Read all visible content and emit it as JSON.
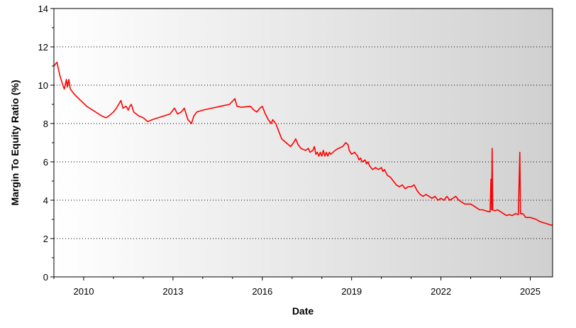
{
  "chart_data": {
    "type": "line",
    "title": "",
    "xlabel": "Date",
    "ylabel": "Margin To Equity Ratio (%)",
    "xlim": [
      2009.0,
      2025.75
    ],
    "ylim": [
      0,
      14
    ],
    "x_ticks": [
      2010,
      2013,
      2016,
      2019,
      2022,
      2025
    ],
    "y_ticks": [
      0,
      2,
      4,
      6,
      8,
      10,
      12,
      14
    ],
    "grid": "horizontal dotted",
    "legend": "none",
    "series": [
      {
        "color": "#ff0000",
        "points": [
          [
            2009.0,
            11.0
          ],
          [
            2009.1,
            11.2
          ],
          [
            2009.2,
            10.5
          ],
          [
            2009.3,
            10.0
          ],
          [
            2009.35,
            9.8
          ],
          [
            2009.42,
            10.3
          ],
          [
            2009.45,
            9.9
          ],
          [
            2009.5,
            10.3
          ],
          [
            2009.55,
            9.8
          ],
          [
            2009.7,
            9.5
          ],
          [
            2009.9,
            9.2
          ],
          [
            2010.1,
            8.9
          ],
          [
            2010.3,
            8.7
          ],
          [
            2010.5,
            8.5
          ],
          [
            2010.6,
            8.4
          ],
          [
            2010.75,
            8.3
          ],
          [
            2010.85,
            8.4
          ],
          [
            2011.0,
            8.6
          ],
          [
            2011.1,
            8.8
          ],
          [
            2011.25,
            9.2
          ],
          [
            2011.32,
            8.8
          ],
          [
            2011.42,
            8.9
          ],
          [
            2011.5,
            8.7
          ],
          [
            2011.55,
            8.9
          ],
          [
            2011.6,
            9.0
          ],
          [
            2011.68,
            8.6
          ],
          [
            2011.85,
            8.4
          ],
          [
            2012.0,
            8.3
          ],
          [
            2012.15,
            8.1
          ],
          [
            2012.3,
            8.2
          ],
          [
            2012.5,
            8.3
          ],
          [
            2012.7,
            8.4
          ],
          [
            2012.9,
            8.5
          ],
          [
            2013.05,
            8.8
          ],
          [
            2013.15,
            8.5
          ],
          [
            2013.28,
            8.6
          ],
          [
            2013.38,
            8.8
          ],
          [
            2013.5,
            8.2
          ],
          [
            2013.62,
            8.0
          ],
          [
            2013.7,
            8.4
          ],
          [
            2013.8,
            8.6
          ],
          [
            2014.0,
            8.7
          ],
          [
            2014.3,
            8.8
          ],
          [
            2014.6,
            8.9
          ],
          [
            2014.9,
            9.0
          ],
          [
            2015.08,
            9.3
          ],
          [
            2015.15,
            8.9
          ],
          [
            2015.3,
            8.85
          ],
          [
            2015.6,
            8.9
          ],
          [
            2015.72,
            8.7
          ],
          [
            2015.82,
            8.6
          ],
          [
            2015.92,
            8.8
          ],
          [
            2016.0,
            8.9
          ],
          [
            2016.1,
            8.5
          ],
          [
            2016.2,
            8.2
          ],
          [
            2016.3,
            8.0
          ],
          [
            2016.35,
            8.2
          ],
          [
            2016.45,
            8.0
          ],
          [
            2016.55,
            7.6
          ],
          [
            2016.65,
            7.2
          ],
          [
            2016.8,
            7.0
          ],
          [
            2016.95,
            6.8
          ],
          [
            2017.05,
            7.0
          ],
          [
            2017.12,
            7.2
          ],
          [
            2017.2,
            6.9
          ],
          [
            2017.3,
            6.7
          ],
          [
            2017.45,
            6.6
          ],
          [
            2017.55,
            6.7
          ],
          [
            2017.6,
            6.5
          ],
          [
            2017.7,
            6.6
          ],
          [
            2017.75,
            6.8
          ],
          [
            2017.8,
            6.4
          ],
          [
            2017.85,
            6.5
          ],
          [
            2017.9,
            6.3
          ],
          [
            2017.95,
            6.5
          ],
          [
            2018.0,
            6.3
          ],
          [
            2018.05,
            6.6
          ],
          [
            2018.1,
            6.3
          ],
          [
            2018.15,
            6.5
          ],
          [
            2018.2,
            6.3
          ],
          [
            2018.25,
            6.5
          ],
          [
            2018.3,
            6.4
          ],
          [
            2018.45,
            6.6
          ],
          [
            2018.55,
            6.7
          ],
          [
            2018.7,
            6.8
          ],
          [
            2018.8,
            7.0
          ],
          [
            2018.88,
            6.9
          ],
          [
            2018.92,
            6.6
          ],
          [
            2019.0,
            6.4
          ],
          [
            2019.1,
            6.5
          ],
          [
            2019.2,
            6.3
          ],
          [
            2019.25,
            6.1
          ],
          [
            2019.3,
            6.2
          ],
          [
            2019.35,
            6.0
          ],
          [
            2019.45,
            6.1
          ],
          [
            2019.5,
            5.9
          ],
          [
            2019.55,
            6.0
          ],
          [
            2019.6,
            5.8
          ],
          [
            2019.7,
            5.6
          ],
          [
            2019.8,
            5.7
          ],
          [
            2019.9,
            5.6
          ],
          [
            2020.0,
            5.7
          ],
          [
            2020.05,
            5.5
          ],
          [
            2020.1,
            5.6
          ],
          [
            2020.2,
            5.3
          ],
          [
            2020.3,
            5.2
          ],
          [
            2020.4,
            5.0
          ],
          [
            2020.5,
            4.8
          ],
          [
            2020.6,
            4.7
          ],
          [
            2020.7,
            4.8
          ],
          [
            2020.8,
            4.6
          ],
          [
            2020.9,
            4.7
          ],
          [
            2021.0,
            4.7
          ],
          [
            2021.1,
            4.8
          ],
          [
            2021.2,
            4.5
          ],
          [
            2021.3,
            4.3
          ],
          [
            2021.4,
            4.2
          ],
          [
            2021.5,
            4.3
          ],
          [
            2021.6,
            4.2
          ],
          [
            2021.7,
            4.1
          ],
          [
            2021.8,
            4.2
          ],
          [
            2021.9,
            4.0
          ],
          [
            2022.0,
            4.1
          ],
          [
            2022.1,
            4.0
          ],
          [
            2022.2,
            4.2
          ],
          [
            2022.3,
            4.0
          ],
          [
            2022.4,
            4.1
          ],
          [
            2022.5,
            4.2
          ],
          [
            2022.55,
            4.1
          ],
          [
            2022.6,
            4.0
          ],
          [
            2022.7,
            3.9
          ],
          [
            2022.8,
            3.8
          ],
          [
            2022.9,
            3.8
          ],
          [
            2023.0,
            3.8
          ],
          [
            2023.1,
            3.7
          ],
          [
            2023.2,
            3.6
          ],
          [
            2023.3,
            3.5
          ],
          [
            2023.4,
            3.5
          ],
          [
            2023.5,
            3.45
          ],
          [
            2023.6,
            3.4
          ],
          [
            2023.65,
            3.4
          ],
          [
            2023.68,
            5.1
          ],
          [
            2023.7,
            3.5
          ],
          [
            2023.72,
            6.7
          ],
          [
            2023.74,
            3.5
          ],
          [
            2023.8,
            3.45
          ],
          [
            2023.9,
            3.5
          ],
          [
            2024.0,
            3.4
          ],
          [
            2024.1,
            3.3
          ],
          [
            2024.2,
            3.2
          ],
          [
            2024.3,
            3.25
          ],
          [
            2024.4,
            3.2
          ],
          [
            2024.5,
            3.3
          ],
          [
            2024.6,
            3.25
          ],
          [
            2024.65,
            6.5
          ],
          [
            2024.67,
            3.3
          ],
          [
            2024.75,
            3.3
          ],
          [
            2024.85,
            3.1
          ],
          [
            2025.0,
            3.1
          ],
          [
            2025.1,
            3.05
          ],
          [
            2025.2,
            3.0
          ],
          [
            2025.3,
            2.9
          ],
          [
            2025.4,
            2.85
          ],
          [
            2025.5,
            2.8
          ],
          [
            2025.6,
            2.75
          ],
          [
            2025.7,
            2.7
          ],
          [
            2025.75,
            2.7
          ]
        ]
      }
    ]
  }
}
